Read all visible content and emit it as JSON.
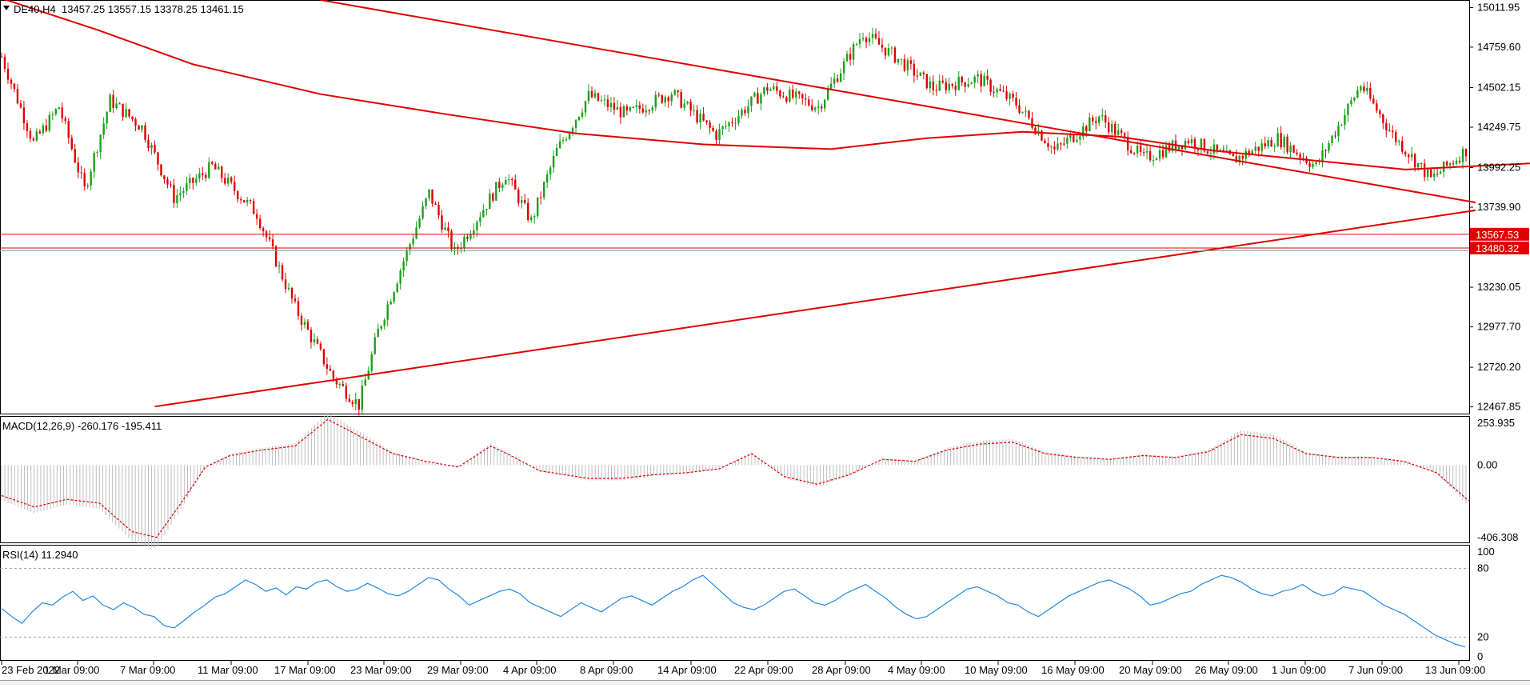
{
  "header": {
    "symbol": "DE40,H4",
    "ohlc": "13457.25 13557.15 13378.25 13461.15",
    "collapse_icon": "triangle-down-icon"
  },
  "colors": {
    "bull": "#1aa01a",
    "bear": "#e00000",
    "trendline": "#e00000",
    "ma": "#e00000",
    "rsi": "#1e88e5",
    "macd_hist": "#bdbdbd",
    "price_tag_bg": "#e00000",
    "grid_level": "#9e9e9e"
  },
  "chart_data": [
    {
      "type": "candlestick",
      "title": "DE40,H4",
      "ylim": [
        12420,
        15060
      ],
      "y_ticks": [
        "15011.95",
        "14759.60",
        "14502.15",
        "14249.75",
        "13992.25",
        "13739.90",
        "13230.05",
        "12977.70",
        "12720.20",
        "12467.85"
      ],
      "price_tags": [
        "13567.53",
        "13480.32"
      ],
      "horizontal_levels": [
        13567.53,
        13480.32,
        13462.0
      ],
      "x_labels": [
        "23 Feb 2022",
        "1 Mar 09:00",
        "7 Mar 09:00",
        "11 Mar 09:00",
        "17 Mar 09:00",
        "23 Mar 09:00",
        "29 Mar 09:00",
        "4 Apr 09:00",
        "8 Apr 09:00",
        "14 Apr 09:00",
        "22 Apr 09:00",
        "28 Apr 09:00",
        "4 May 09:00",
        "10 May 09:00",
        "16 May 09:00",
        "20 May 09:00",
        "26 May 09:00",
        "1 Jun 09:00",
        "7 Jun 09:00",
        "13 Jun 09:00"
      ],
      "bar_count": 460,
      "series_anchors": [
        [
          0,
          14700
        ],
        [
          10,
          14150
        ],
        [
          18,
          14380
        ],
        [
          26,
          13850
        ],
        [
          34,
          14420
        ],
        [
          44,
          14250
        ],
        [
          54,
          13800
        ],
        [
          66,
          14000
        ],
        [
          80,
          13700
        ],
        [
          92,
          13100
        ],
        [
          104,
          12650
        ],
        [
          112,
          12480
        ],
        [
          118,
          12950
        ],
        [
          126,
          13400
        ],
        [
          134,
          13830
        ],
        [
          142,
          13450
        ],
        [
          150,
          13700
        ],
        [
          158,
          13950
        ],
        [
          166,
          13650
        ],
        [
          174,
          14100
        ],
        [
          184,
          14450
        ],
        [
          196,
          14330
        ],
        [
          210,
          14470
        ],
        [
          224,
          14200
        ],
        [
          240,
          14500
        ],
        [
          256,
          14380
        ],
        [
          270,
          14850
        ],
        [
          280,
          14700
        ],
        [
          292,
          14500
        ],
        [
          306,
          14560
        ],
        [
          318,
          14400
        ],
        [
          330,
          14100
        ],
        [
          344,
          14320
        ],
        [
          358,
          14050
        ],
        [
          372,
          14170
        ],
        [
          386,
          14040
        ],
        [
          400,
          14180
        ],
        [
          412,
          14000
        ],
        [
          426,
          14520
        ],
        [
          436,
          14200
        ],
        [
          448,
          13920
        ],
        [
          460,
          14120
        ],
        [
          472,
          13950
        ]
      ],
      "candles_note_ref": "",
      "moving_averages": [
        {
          "points": [
            [
              0,
              15070
            ],
            [
              30,
              14870
            ],
            [
              60,
              14650
            ],
            [
              100,
              14460
            ],
            [
              140,
              14330
            ],
            [
              180,
              14210
            ],
            [
              220,
              14140
            ],
            [
              260,
              14110
            ],
            [
              290,
              14180
            ],
            [
              320,
              14220
            ],
            [
              350,
              14190
            ],
            [
              380,
              14100
            ],
            [
              410,
              14040
            ],
            [
              440,
              13980
            ],
            [
              470,
              14010
            ],
            [
              500,
              14040
            ]
          ]
        }
      ],
      "trendlines": [
        {
          "from": [
            100,
            15060
          ],
          "to": [
            462,
            13770
          ]
        },
        {
          "from": [
            48,
            12470
          ],
          "to": [
            462,
            13720
          ]
        }
      ]
    },
    {
      "type": "bar",
      "title": "MACD(12,26,9) -260.176 -195.411",
      "ylim": [
        -406.308,
        253.935
      ],
      "y_ticks": [
        "253.935",
        "0.00",
        "-406.308"
      ],
      "signal_series": [
        [
          0,
          -160
        ],
        [
          20,
          -220
        ],
        [
          40,
          -180
        ],
        [
          60,
          -200
        ],
        [
          80,
          -350
        ],
        [
          95,
          -380
        ],
        [
          110,
          -200
        ],
        [
          125,
          -10
        ],
        [
          140,
          50
        ],
        [
          160,
          80
        ],
        [
          180,
          100
        ],
        [
          200,
          240
        ],
        [
          220,
          150
        ],
        [
          240,
          60
        ],
        [
          260,
          20
        ],
        [
          280,
          -10
        ],
        [
          300,
          100
        ],
        [
          310,
          60
        ],
        [
          330,
          -30
        ],
        [
          360,
          -70
        ],
        [
          380,
          -70
        ],
        [
          400,
          -50
        ],
        [
          420,
          -40
        ],
        [
          440,
          -20
        ],
        [
          460,
          60
        ],
        [
          480,
          -60
        ],
        [
          500,
          -100
        ],
        [
          520,
          -50
        ],
        [
          540,
          30
        ],
        [
          560,
          20
        ],
        [
          580,
          80
        ],
        [
          600,
          110
        ],
        [
          620,
          120
        ],
        [
          640,
          60
        ],
        [
          660,
          40
        ],
        [
          680,
          30
        ],
        [
          700,
          50
        ],
        [
          720,
          40
        ],
        [
          740,
          70
        ],
        [
          760,
          160
        ],
        [
          780,
          140
        ],
        [
          800,
          60
        ],
        [
          820,
          40
        ],
        [
          840,
          40
        ],
        [
          860,
          20
        ],
        [
          880,
          -40
        ],
        [
          900,
          -190
        ]
      ]
    },
    {
      "type": "line",
      "title": "RSI(14) 11.2940",
      "ylim": [
        0,
        100
      ],
      "y_ticks": [
        "100",
        "80",
        "20",
        "0"
      ],
      "levels": [
        80,
        20
      ],
      "values": [
        45,
        38,
        32,
        42,
        50,
        48,
        55,
        60,
        52,
        56,
        48,
        44,
        50,
        46,
        40,
        38,
        30,
        28,
        35,
        42,
        48,
        55,
        58,
        64,
        70,
        66,
        60,
        63,
        57,
        64,
        62,
        68,
        70,
        64,
        60,
        62,
        67,
        63,
        58,
        56,
        60,
        66,
        72,
        70,
        62,
        56,
        48,
        52,
        56,
        60,
        62,
        58,
        50,
        46,
        42,
        38,
        44,
        50,
        46,
        42,
        48,
        54,
        56,
        52,
        48,
        54,
        60,
        64,
        70,
        74,
        66,
        58,
        50,
        46,
        44,
        48,
        54,
        60,
        62,
        56,
        50,
        48,
        52,
        58,
        62,
        66,
        60,
        54,
        46,
        40,
        36,
        38,
        44,
        50,
        56,
        62,
        64,
        60,
        56,
        50,
        48,
        42,
        38,
        44,
        50,
        56,
        60,
        64,
        68,
        70,
        66,
        62,
        56,
        48,
        50,
        54,
        58,
        60,
        66,
        70,
        74,
        72,
        68,
        62,
        58,
        56,
        60,
        62,
        66,
        60,
        56,
        58,
        64,
        62,
        60,
        54,
        48,
        44,
        40,
        34,
        28,
        22,
        18,
        14,
        11.294
      ]
    }
  ]
}
